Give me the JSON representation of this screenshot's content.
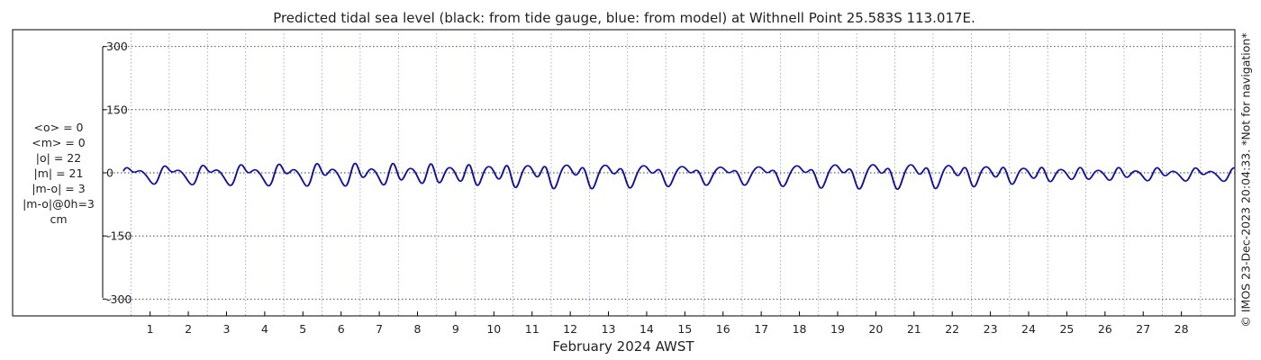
{
  "chart_data": {
    "type": "line",
    "title": "Predicted tidal sea level (black: from tide gauge, blue: from model) at Withnell Point 25.583S 113.017E.",
    "xlabel": "February 2024 AWST",
    "ylabel": "",
    "x_ticks": [
      1,
      2,
      3,
      4,
      5,
      6,
      7,
      8,
      9,
      10,
      11,
      12,
      13,
      14,
      15,
      16,
      17,
      18,
      19,
      20,
      21,
      22,
      23,
      24,
      25,
      26,
      27,
      28
    ],
    "xlim": [
      -2.6,
      29.4
    ],
    "data_start_day": 0.3,
    "data_end_day": 29.4,
    "y_ticks": [
      300,
      150,
      0,
      -150,
      -300
    ],
    "y_tick_labels": [
      "300",
      "150",
      "0",
      "-150",
      "-300"
    ],
    "ylim": [
      -340,
      340
    ],
    "grid": true,
    "series": [
      {
        "name": "tide gauge",
        "color": "#000000",
        "amplitude_cm": [
          15,
          22,
          24,
          27,
          30,
          34,
          39,
          42,
          45,
          46,
          46,
          44,
          40,
          35,
          30,
          25,
          22,
          23,
          27,
          31,
          34,
          37,
          38,
          37,
          34,
          31,
          28,
          25,
          22,
          20
        ],
        "offset_cm": -3
      },
      {
        "name": "model",
        "color": "#1111bb",
        "amplitude_cm": [
          15,
          22,
          24,
          27,
          30,
          34,
          39,
          42,
          45,
          46,
          46,
          44,
          40,
          35,
          30,
          25,
          22,
          23,
          27,
          31,
          34,
          37,
          38,
          37,
          34,
          31,
          28,
          25,
          22,
          20
        ],
        "offset_cm": -3
      }
    ]
  },
  "stats": {
    "mean_obs": "<o> = 0",
    "mean_model": "<m> = 0",
    "abs_obs": "|o| = 22",
    "abs_model": "|m| = 21",
    "abs_diff": "|m-o| = 3",
    "abs_diff_0h": "|m-o|@0h=3",
    "unit": "cm"
  },
  "credit": "© IMOS 23-Dec-2023 20:04:33. *Not for navigation*",
  "colors": {
    "grid": "#333333",
    "frame": "#000000",
    "gauge": "#000000",
    "model": "#1111bb"
  }
}
